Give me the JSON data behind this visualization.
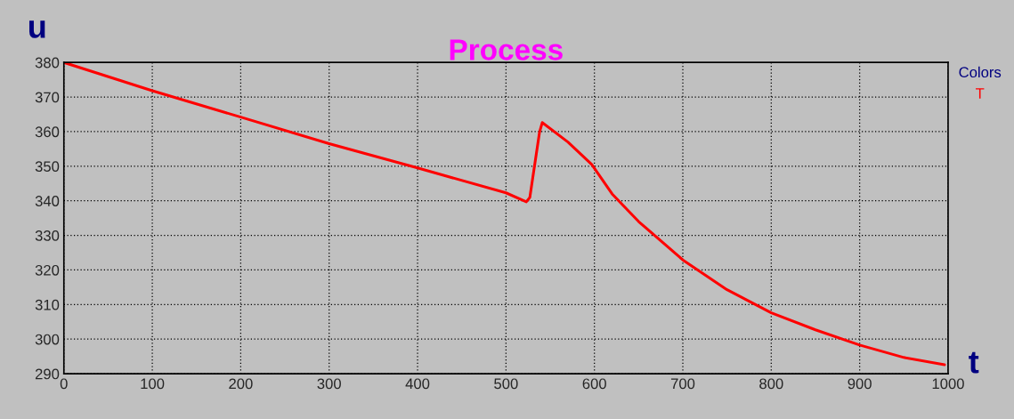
{
  "chart_data": {
    "type": "line",
    "title": "Process",
    "xlabel": "t",
    "ylabel": "u",
    "legend_title": "Colors",
    "legend": "top right",
    "xlim": [
      0,
      1000
    ],
    "ylim": [
      290,
      380
    ],
    "xticks": [
      0,
      100,
      200,
      300,
      400,
      500,
      600,
      700,
      800,
      900,
      1000
    ],
    "yticks": [
      290,
      300,
      310,
      320,
      330,
      340,
      350,
      360,
      370,
      380
    ],
    "grid": true,
    "line_style": "solid",
    "marker": "none",
    "series": [
      {
        "name": "T",
        "color": "#ff0000",
        "x": [
          0,
          100,
          200,
          300,
          400,
          500,
          523,
          527,
          538,
          541,
          570,
          597,
          620,
          650,
          700,
          750,
          800,
          850,
          900,
          950,
          996
        ],
        "values": [
          380,
          371.8,
          364.2,
          356.5,
          349.5,
          342.3,
          339.7,
          341,
          359.9,
          362.6,
          357,
          350.5,
          342,
          334,
          322.9,
          314.3,
          307.6,
          302.7,
          298.3,
          294.7,
          292.6
        ]
      }
    ]
  }
}
